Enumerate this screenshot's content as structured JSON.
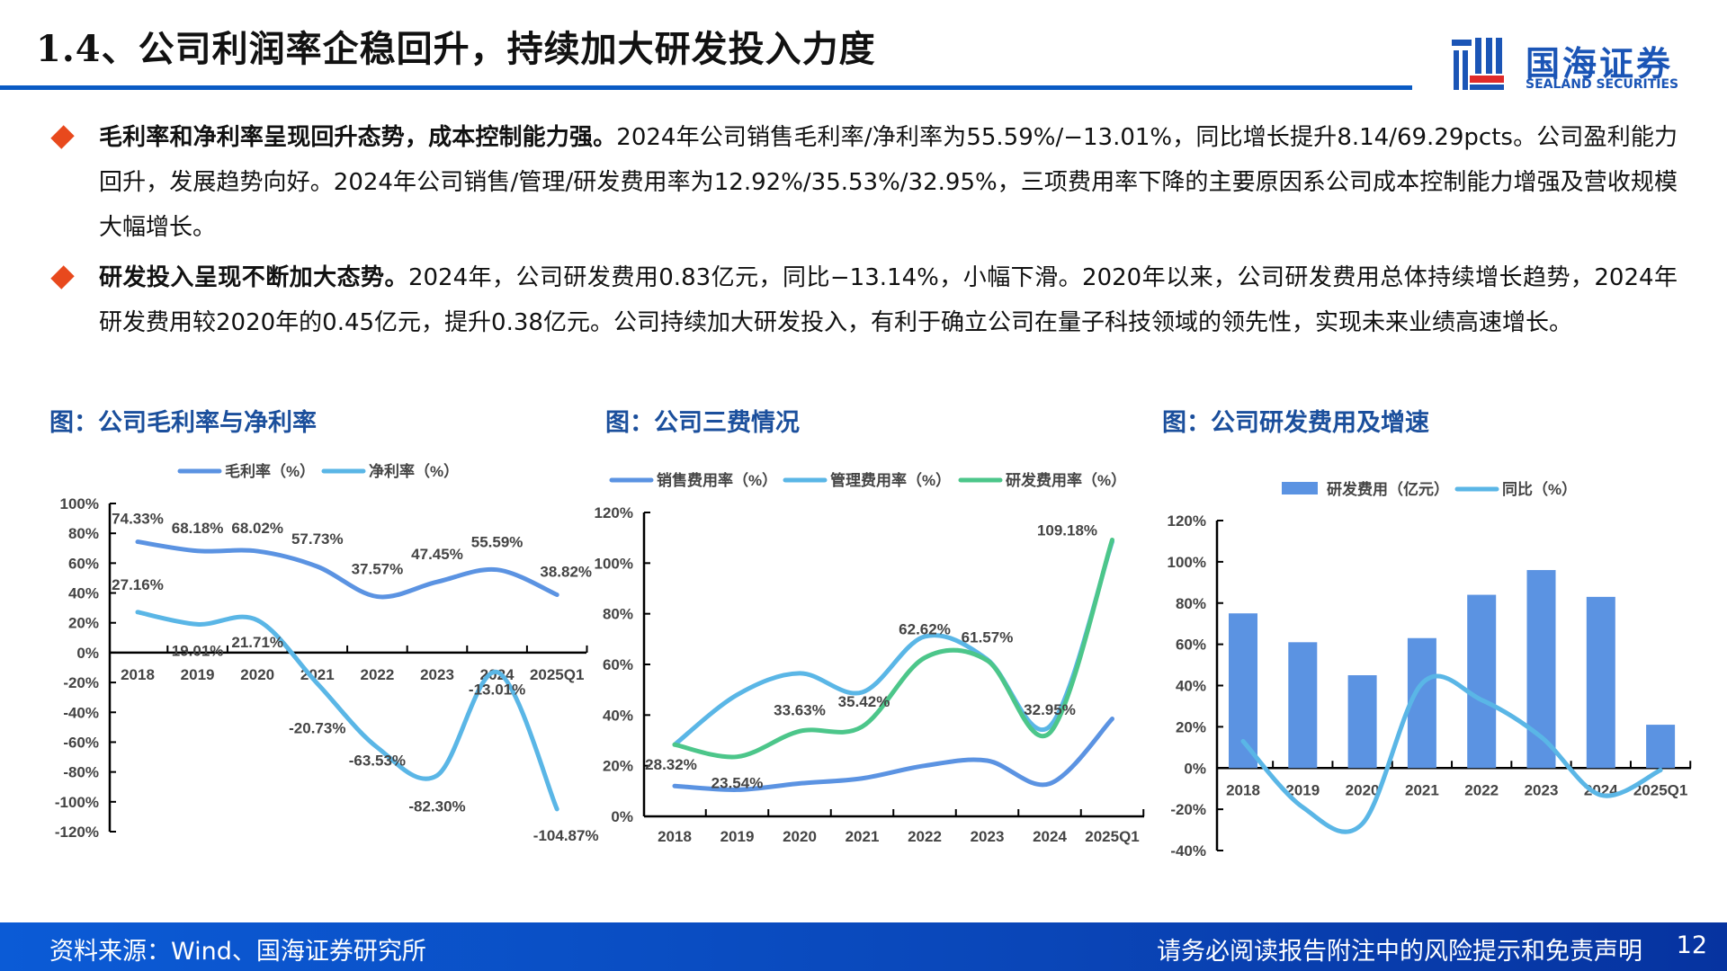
{
  "header": {
    "title": "1.4、公司利润率企稳回升，持续加大研发投入力度",
    "logo": {
      "cn": "国海证券",
      "en": "SEALAND SECURITIES"
    },
    "colors": {
      "accent": "#0a5bc4",
      "bullet": "#e8491d",
      "figure_title": "#1b4f9c"
    }
  },
  "bullets": [
    {
      "bold": "毛利率和净利率呈现回升态势，成本控制能力强。",
      "text": "2024年公司销售毛利率/净利率为55.59%/−13.01%，同比增长提升8.14/69.29pcts。公司盈利能力回升，发展趋势向好。2024年公司销售/管理/研发费用率为12.92%/35.53%/32.95%，三项费用率下降的主要原因系公司成本控制能力增强及营收规模大幅增长。"
    },
    {
      "bold": "研发投入呈现不断加大态势。",
      "text": "2024年，公司研发费用0.83亿元，同比−13.14%，小幅下滑。2020年以来，公司研发费用总体持续增长趋势，2024年研发费用较2020年的0.45亿元，提升0.38亿元。公司持续加大研发投入，有利于确立公司在量子科技领域的领先性，实现未来业绩高速增长。"
    }
  ],
  "figures": [
    {
      "title": "图：公司毛利率与净利率"
    },
    {
      "title": "图：公司三费情况"
    },
    {
      "title": "图：公司研发费用及增速"
    }
  ],
  "chart_data": [
    {
      "type": "line",
      "categories": [
        "2018",
        "2019",
        "2020",
        "2021",
        "2022",
        "2023",
        "2024",
        "2025Q1"
      ],
      "ylim": [
        -120,
        100
      ],
      "yticks": [
        "100%",
        "80%",
        "60%",
        "40%",
        "20%",
        "0%",
        "-20%",
        "-40%",
        "-60%",
        "-80%",
        "-100%",
        "-120%"
      ],
      "legend": "top",
      "grid": false,
      "series": [
        {
          "name": "毛利率（%）",
          "color": "#5b93e2",
          "values": [
            74.33,
            68.18,
            68.02,
            57.73,
            37.57,
            47.45,
            55.59,
            38.82
          ],
          "labels": [
            "74.33%",
            "68.18%",
            "68.02%",
            "57.73%",
            "37.57%",
            "47.45%",
            "55.59%",
            "38.82%"
          ]
        },
        {
          "name": "净利率（%）",
          "color": "#5ab6e6",
          "values": [
            27.16,
            19.01,
            21.71,
            -20.73,
            -63.53,
            -82.3,
            -13.01,
            -104.87
          ],
          "labels": [
            "27.16%",
            "19.01%",
            "21.71%",
            "-20.73%",
            "-63.53%",
            "-82.30%",
            "-13.01%",
            "-104.87%"
          ]
        }
      ]
    },
    {
      "type": "line",
      "categories": [
        "2018",
        "2019",
        "2020",
        "2021",
        "2022",
        "2023",
        "2024",
        "2025Q1"
      ],
      "ylim": [
        0,
        120
      ],
      "yticks": [
        "120%",
        "100%",
        "80%",
        "60%",
        "40%",
        "20%",
        "0%"
      ],
      "legend": "top",
      "grid": false,
      "series": [
        {
          "name": "销售费用率（%）",
          "color": "#5b93e2",
          "values": [
            12,
            10.5,
            13,
            15,
            20,
            22,
            12.92,
            38.5
          ],
          "labels": []
        },
        {
          "name": "管理费用率（%）",
          "color": "#5ab6e6",
          "values": [
            28.3,
            48,
            56.5,
            49,
            71,
            62,
            35.53,
            108.5
          ],
          "labels": []
        },
        {
          "name": "研发费用率（%）",
          "color": "#4cc68a",
          "values": [
            28.32,
            23.54,
            33.63,
            35.42,
            62.62,
            61.57,
            32.95,
            109.18
          ],
          "labels": [
            "28.32%",
            "23.54%",
            "33.63%",
            "35.42%",
            "62.62%",
            "61.57%",
            "32.95%",
            "109.18%"
          ]
        }
      ]
    },
    {
      "type": "bar+line",
      "categories": [
        "2018",
        "2019",
        "2020",
        "2021",
        "2022",
        "2023",
        "2024",
        "2025Q1"
      ],
      "ylim": [
        -40,
        120
      ],
      "yticks": [
        "120%",
        "100%",
        "80%",
        "60%",
        "40%",
        "20%",
        "0%",
        "-20%",
        "-40%"
      ],
      "legend": "top",
      "grid": false,
      "series": [
        {
          "name": "研发费用（亿元）",
          "kind": "bar",
          "color": "#5b93e2",
          "values": [
            0.75,
            0.61,
            0.45,
            0.63,
            0.84,
            0.96,
            0.83,
            0.21
          ]
        },
        {
          "name": "同比（%）",
          "kind": "line",
          "color": "#5ab6e6",
          "values": [
            13,
            -19,
            -27,
            41,
            33,
            15,
            -13.14,
            -1
          ]
        }
      ]
    }
  ],
  "footer": {
    "source": "资料来源：Wind、国海证券研究所",
    "disclaimer": "请务必阅读报告附注中的风险提示和免责声明",
    "page": "12"
  }
}
